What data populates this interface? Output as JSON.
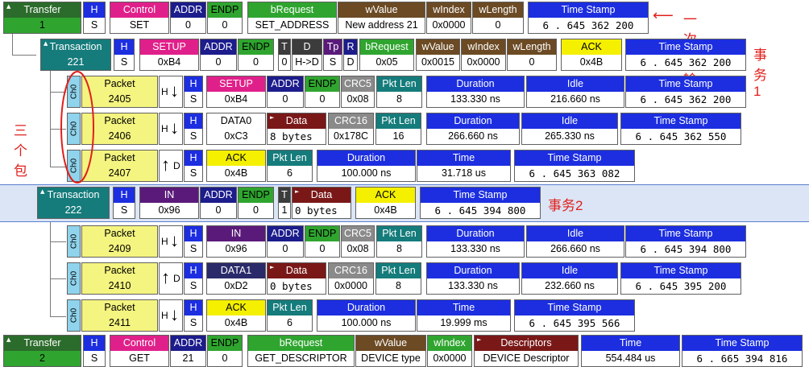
{
  "colors": {
    "transfer": "#2b6b2b",
    "green": "#2fa52f",
    "magenta": "#e0208a",
    "navy": "#1c1c8c",
    "teal": "#157b7b",
    "brown": "#6b4a24",
    "blue": "#1c2ee0",
    "darkred": "#7a1818",
    "packet": "#f4f480",
    "ack": "#f4f000",
    "darkblue": "#2a2a6a",
    "darkgray": "#3c3c3c",
    "purple": "#5a1a7a",
    "sel": "#dbe5f5"
  },
  "row1": {
    "title": "Transfer",
    "num": "1",
    "h": "H",
    "s": "S",
    "control": "Control",
    "control_v": "SET",
    "addr": "ADDR",
    "addr_v": "0",
    "endp": "ENDP",
    "endp_v": "0",
    "breq": "bRequest",
    "breq_v": "SET_ADDRESS",
    "wvalue": "wValue",
    "wvalue_v": "New address 21",
    "windex": "wIndex",
    "windex_v": "0x0000",
    "wlength": "wLength",
    "wlength_v": "0",
    "ts": "Time Stamp",
    "ts_v": "6 . 645 362 200",
    "note": "一次传输"
  },
  "row2": {
    "title": "Transaction",
    "num": "221",
    "h": "H",
    "s": "S",
    "setup": "SETUP",
    "setup_v": "0xB4",
    "addr": "ADDR",
    "addr_v": "0",
    "endp": "ENDP",
    "endp_v": "0",
    "t": "T",
    "t_v": "0",
    "d": "D",
    "d_v": "H->D",
    "tp": "Tp",
    "tp_v": "S",
    "r": "R",
    "r_v": "D",
    "breq": "bRequest",
    "breq_v": "0x05",
    "wvalue": "wValue",
    "wvalue_v": "0x0015",
    "windex": "wIndex",
    "windex_v": "0x0000",
    "wlength": "wLength",
    "wlength_v": "0",
    "ack": "ACK",
    "ack_v": "0x4B",
    "ts": "Time Stamp",
    "ts_v": "6 . 645 362 200",
    "note": "事务1"
  },
  "row3": {
    "ch": "Ch0",
    "packet": "Packet",
    "num": "2405",
    "dir": "H",
    "h": "H",
    "s": "S",
    "pid": "SETUP",
    "pid_v": "0xB4",
    "addr": "ADDR",
    "addr_v": "0",
    "endp": "ENDP",
    "endp_v": "0",
    "crc": "CRC5",
    "crc_v": "0x08",
    "plen": "Pkt Len",
    "plen_v": "8",
    "dur": "Duration",
    "dur_v": "133.330 ns",
    "idle": "Idle",
    "idle_v": "216.660 ns",
    "ts": "Time Stamp",
    "ts_v": "6 . 645 362 200"
  },
  "row4": {
    "ch": "Ch0",
    "packet": "Packet",
    "num": "2406",
    "dir": "H",
    "h": "H",
    "s": "S",
    "pid": "DATA0",
    "pid_v": "0xC3",
    "data": "Data",
    "data_v": "8 bytes",
    "crc": "CRC16",
    "crc_v": "0x178C",
    "plen": "Pkt Len",
    "plen_v": "16",
    "dur": "Duration",
    "dur_v": "266.660 ns",
    "idle": "Idle",
    "idle_v": "265.330 ns",
    "ts": "Time Stamp",
    "ts_v": "6 . 645 362 550",
    "annot": "三个包"
  },
  "row5": {
    "ch": "Ch0",
    "packet": "Packet",
    "num": "2407",
    "dir": "D",
    "h": "H",
    "s": "S",
    "pid": "ACK",
    "pid_v": "0x4B",
    "plen": "Pkt Len",
    "plen_v": "6",
    "dur": "Duration",
    "dur_v": "100.000 ns",
    "time": "Time",
    "time_v": "31.718 us",
    "ts": "Time Stamp",
    "ts_v": "6 . 645 363 082"
  },
  "row6": {
    "title": "Transaction",
    "num": "222",
    "h": "H",
    "s": "S",
    "pid": "IN",
    "pid_v": "0x96",
    "addr": "ADDR",
    "addr_v": "0",
    "endp": "ENDP",
    "endp_v": "0",
    "t": "T",
    "t_v": "1",
    "data": "Data",
    "data_v": "0 bytes",
    "ack": "ACK",
    "ack_v": "0x4B",
    "ts": "Time Stamp",
    "ts_v": "6 . 645 394 800",
    "note": "事务2"
  },
  "row7": {
    "ch": "Ch0",
    "packet": "Packet",
    "num": "2409",
    "dir": "H",
    "h": "H",
    "s": "S",
    "pid": "IN",
    "pid_v": "0x96",
    "addr": "ADDR",
    "addr_v": "0",
    "endp": "ENDP",
    "endp_v": "0",
    "crc": "CRC5",
    "crc_v": "0x08",
    "plen": "Pkt Len",
    "plen_v": "8",
    "dur": "Duration",
    "dur_v": "133.330 ns",
    "idle": "Idle",
    "idle_v": "266.660 ns",
    "ts": "Time Stamp",
    "ts_v": "6 . 645 394 800"
  },
  "row8": {
    "ch": "Ch0",
    "packet": "Packet",
    "num": "2410",
    "dir": "D",
    "h": "H",
    "s": "S",
    "pid": "DATA1",
    "pid_v": "0xD2",
    "data": "Data",
    "data_v": "0 bytes",
    "crc": "CRC16",
    "crc_v": "0x0000",
    "plen": "Pkt Len",
    "plen_v": "8",
    "dur": "Duration",
    "dur_v": "133.330 ns",
    "idle": "Idle",
    "idle_v": "232.660 ns",
    "ts": "Time Stamp",
    "ts_v": "6 . 645 395 200"
  },
  "row9": {
    "ch": "Ch0",
    "packet": "Packet",
    "num": "2411",
    "dir": "H",
    "h": "H",
    "s": "S",
    "pid": "ACK",
    "pid_v": "0x4B",
    "plen": "Pkt Len",
    "plen_v": "6",
    "dur": "Duration",
    "dur_v": "100.000 ns",
    "time": "Time",
    "time_v": "19.999 ms",
    "ts": "Time Stamp",
    "ts_v": "6 . 645 395 566"
  },
  "row10": {
    "title": "Transfer",
    "num": "2",
    "h": "H",
    "s": "S",
    "control": "Control",
    "control_v": "GET",
    "addr": "ADDR",
    "addr_v": "21",
    "endp": "ENDP",
    "endp_v": "0",
    "breq": "bRequest",
    "breq_v": "GET_DESCRIPTOR",
    "wvalue": "wValue",
    "wvalue_v": "DEVICE type",
    "windex": "wIndex",
    "windex_v": "0x0000",
    "desc": "Descriptors",
    "desc_v": "DEVICE Descriptor",
    "time": "Time",
    "time_v": "554.484 us",
    "ts": "Time Stamp",
    "ts_v": "6 . 665 394 816"
  }
}
